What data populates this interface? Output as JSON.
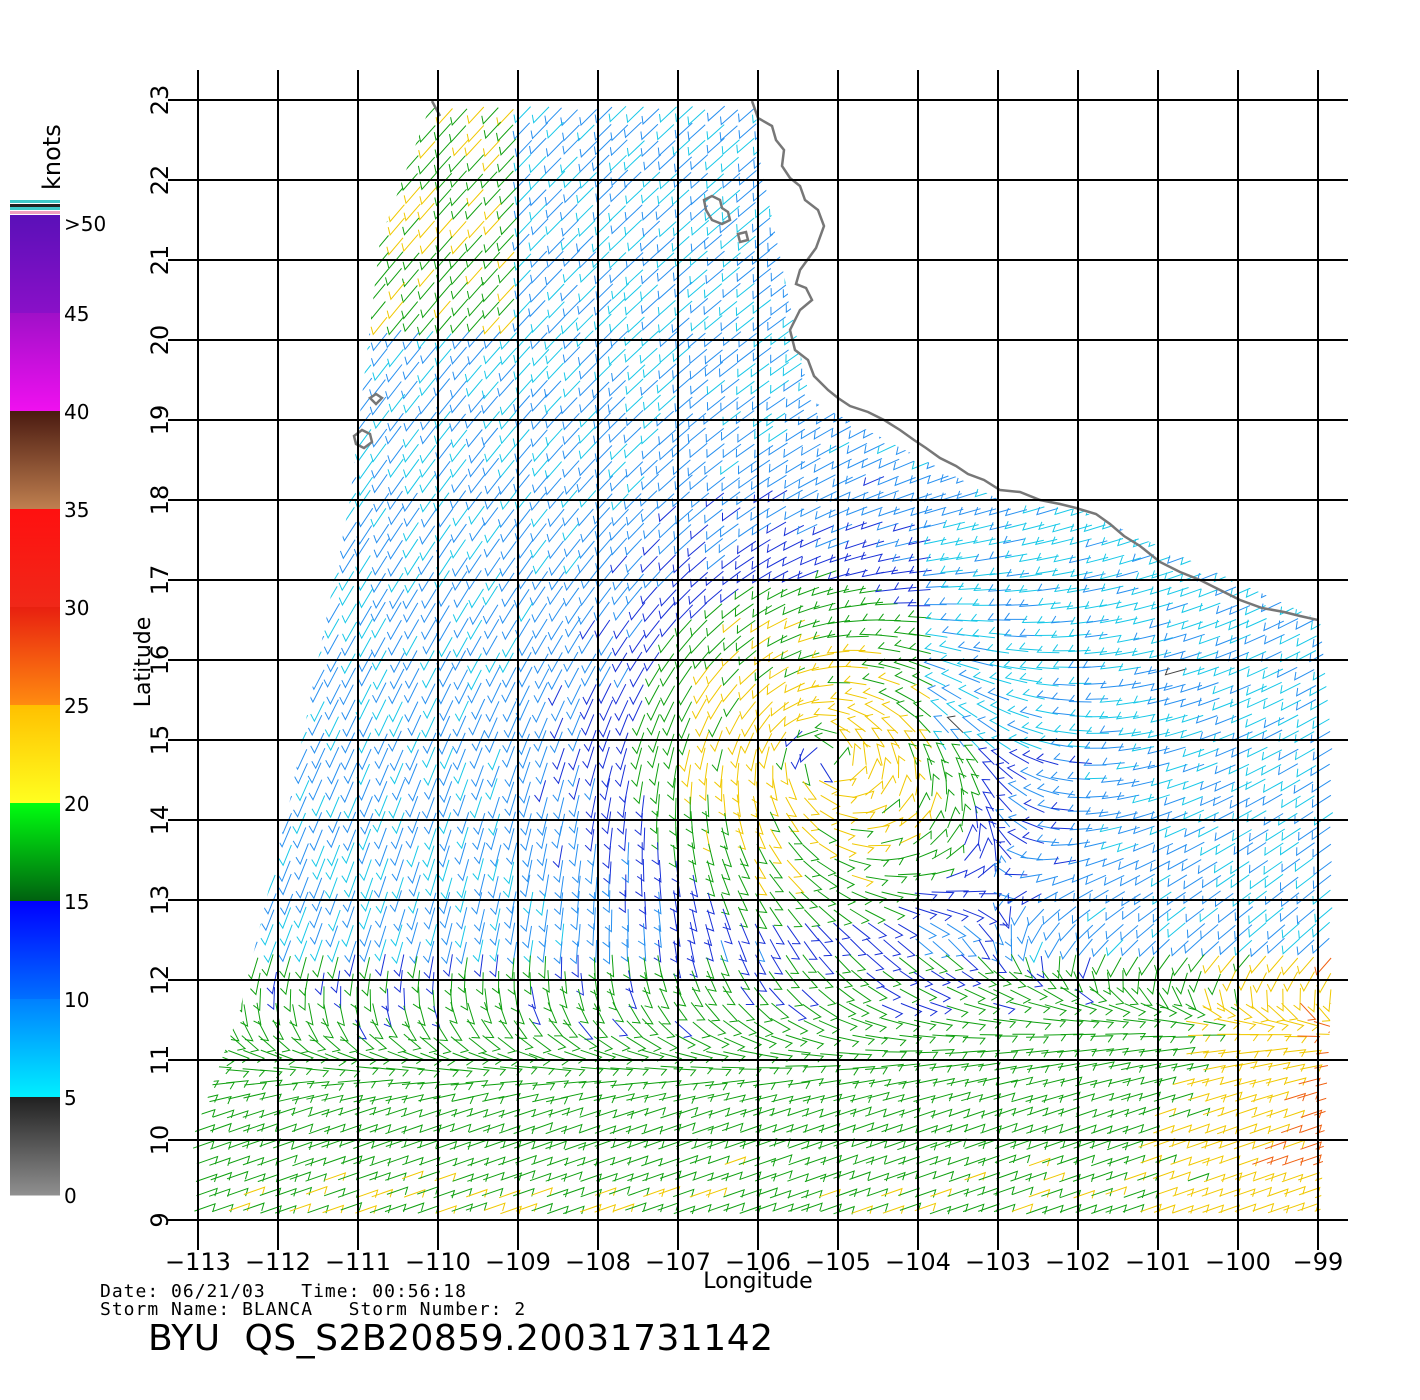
{
  "map": {
    "lon_ticks": [
      -113,
      -112,
      -111,
      -110,
      -109,
      -108,
      -107,
      -106,
      -105,
      -104,
      -103,
      -102,
      -101,
      -100,
      -99
    ],
    "lat_ticks": [
      9,
      10,
      11,
      12,
      13,
      14,
      15,
      16,
      17,
      18,
      19,
      20,
      21,
      22,
      23
    ],
    "lon_tick_labels": [
      "−113",
      "−112",
      "−111",
      "−110",
      "−109",
      "−108",
      "−107",
      "−106",
      "−105",
      "−104",
      "−103",
      "−102",
      "−101",
      "−100",
      "−99"
    ],
    "lat_tick_labels": [
      "9",
      "10",
      "11",
      "12",
      "13",
      "14",
      "15",
      "16",
      "17",
      "18",
      "19",
      "20",
      "21",
      "22",
      "23"
    ],
    "lon_range": [
      -113,
      -98.6
    ],
    "lat_range": [
      9,
      23
    ],
    "xlabel": "Longitude",
    "ylabel": "Latitude",
    "coastline_color": "#777777",
    "grid": true
  },
  "colorbar": {
    "title": "knots",
    "labels": [
      ">50",
      "45",
      "40",
      "35",
      "30",
      "25",
      "20",
      "15",
      "10",
      "5",
      "0"
    ],
    "bands": [
      {
        "from": 45,
        "to": 50,
        "top": "#5a10b8",
        "bottom": "#8a10c8"
      },
      {
        "from": 40,
        "to": 45,
        "top": "#a010c8",
        "bottom": "#f010f0"
      },
      {
        "from": 35,
        "to": 40,
        "top": "#4a1a10",
        "bottom": "#c08050"
      },
      {
        "from": 30,
        "to": 35,
        "top": "#ff1010",
        "bottom": "#f02818"
      },
      {
        "from": 25,
        "to": 30,
        "top": "#e82010",
        "bottom": "#ff8c10"
      },
      {
        "from": 20,
        "to": 25,
        "top": "#ffc000",
        "bottom": "#ffff20"
      },
      {
        "from": 15,
        "to": 20,
        "top": "#00ff10",
        "bottom": "#006010"
      },
      {
        "from": 10,
        "to": 15,
        "top": "#0000ff",
        "bottom": "#0070ff"
      },
      {
        "from": 5,
        "to": 10,
        "top": "#0080ff",
        "bottom": "#00f0ff"
      },
      {
        "from": 0,
        "to": 5,
        "top": "#202020",
        "bottom": "#909090"
      }
    ]
  },
  "storm": {
    "center_lon": -105.3,
    "center_lat": 14.9
  },
  "info": {
    "date_label": "Date:",
    "date": "06/21/03",
    "time_label": "Time:",
    "time": "00:56:18",
    "storm_name_label": "Storm Name:",
    "storm_name": "BLANCA",
    "storm_number_label": "Storm Number:",
    "storm_number": "2",
    "file_title": "BYU  QS_S2B20859.20031731142"
  }
}
